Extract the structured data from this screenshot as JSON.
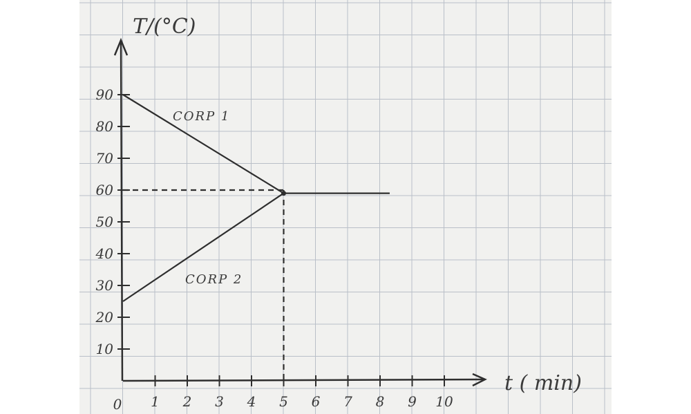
{
  "chart_data": {
    "type": "line",
    "title": "",
    "xlabel": "t ( min)",
    "ylabel": "T/(°C)",
    "xlim": [
      0,
      11
    ],
    "ylim": [
      0,
      100
    ],
    "x_ticks": [
      1,
      2,
      3,
      4,
      5,
      6,
      7,
      8,
      9,
      10
    ],
    "x_tick_labels": [
      "1",
      "2",
      "3",
      "4",
      "5",
      "6",
      "7",
      "8",
      "9",
      "10"
    ],
    "y_ticks": [
      10,
      20,
      30,
      40,
      50,
      60,
      70,
      80,
      90
    ],
    "y_tick_labels": [
      "10",
      "20",
      "30",
      "40",
      "50",
      "60",
      "70",
      "80",
      "90"
    ],
    "origin_label": "0",
    "grid": true,
    "series": [
      {
        "name": "CORP 1",
        "x": [
          0,
          5,
          8.3
        ],
        "y": [
          90,
          59,
          59
        ]
      },
      {
        "name": "CORP 2",
        "x": [
          0,
          5
        ],
        "y": [
          25,
          59
        ]
      }
    ],
    "reference_lines": {
      "x": 5,
      "y": 60,
      "style": "dashed"
    },
    "colors": {
      "paper": "#f1f1ef",
      "grid": "#b9bfc8",
      "ink": "#2e2e2e"
    }
  }
}
